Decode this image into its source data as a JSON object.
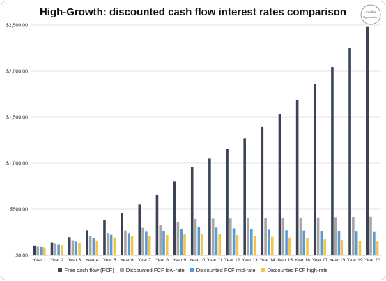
{
  "chart_data": {
    "type": "bar",
    "title": "High-Growth: discounted cash flow interest rates comparison",
    "categories": [
      "Year 1",
      "Year 2",
      "Year 3",
      "Year 4",
      "Year 5",
      "Year 6",
      "Year 7",
      "Year 8",
      "Year 9",
      "Year 10",
      "Year 11",
      "Year 12",
      "Year 13",
      "Year 14",
      "Year 15",
      "Year 16",
      "Year 17",
      "Year 18",
      "Year 19",
      "Year 20"
    ],
    "series": [
      {
        "name": "Free cash flow (FCF)",
        "color": "#3b4457",
        "values": [
          100,
          140,
          195,
          270,
          380,
          460,
          550,
          660,
          800,
          960,
          1050,
          1155,
          1270,
          1395,
          1535,
          1690,
          1860,
          2045,
          2250,
          2480
        ]
      },
      {
        "name": "Discounted FCF low-rate",
        "color": "#a6a6a6",
        "values": [
          95,
          125,
          162,
          210,
          243,
          268,
          298,
          325,
          360,
          395,
          398,
          400,
          403,
          405,
          408,
          410,
          411,
          414,
          416,
          418
        ]
      },
      {
        "name": "Discounted FCF mid-rate",
        "color": "#5b9bd5",
        "values": [
          92,
          118,
          148,
          184,
          222,
          240,
          255,
          262,
          283,
          305,
          300,
          292,
          283,
          278,
          271,
          268,
          263,
          259,
          256,
          252
        ]
      },
      {
        "name": "Discounted FCF high-rate",
        "color": "#f4c542",
        "values": [
          88,
          110,
          130,
          160,
          192,
          205,
          212,
          220,
          230,
          235,
          228,
          220,
          210,
          200,
          192,
          182,
          173,
          165,
          158,
          150
        ]
      }
    ],
    "yticks": [
      "$0.00",
      "$500.00",
      "$1,000.00",
      "$1,500.00",
      "$2,000.00",
      "$2,500.00"
    ],
    "ylim": [
      0,
      2500
    ],
    "grid": true,
    "legend_position": "bottom"
  },
  "logo": {
    "line1": "Insider",
    "line2": "Opportunities"
  }
}
